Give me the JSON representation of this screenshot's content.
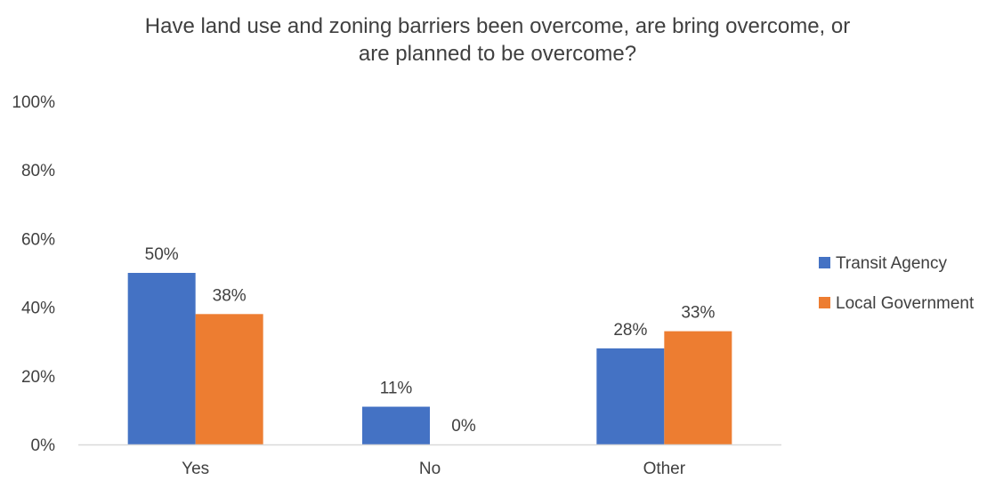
{
  "chart_data": {
    "type": "bar",
    "title_lines": [
      "Have land use and zoning barriers been overcome, are bring overcome, or",
      "are planned to be overcome?"
    ],
    "categories": [
      "Yes",
      "No",
      "Other"
    ],
    "series": [
      {
        "name": "Transit Agency",
        "color": "#4472C4",
        "values": [
          50,
          11,
          28
        ],
        "labels": [
          "50%",
          "11%",
          "28%"
        ]
      },
      {
        "name": "Local Government",
        "color": "#ED7D31",
        "values": [
          38,
          0,
          33
        ],
        "labels": [
          "38%",
          "0%",
          "33%"
        ]
      }
    ],
    "ylim": [
      0,
      100
    ],
    "y_ticks": [
      0,
      20,
      40,
      60,
      80,
      100
    ],
    "y_tick_labels": [
      "0%",
      "20%",
      "40%",
      "60%",
      "80%",
      "100%"
    ],
    "grid": false,
    "legend_position": "right",
    "axis_color": "#D9D9D9"
  }
}
